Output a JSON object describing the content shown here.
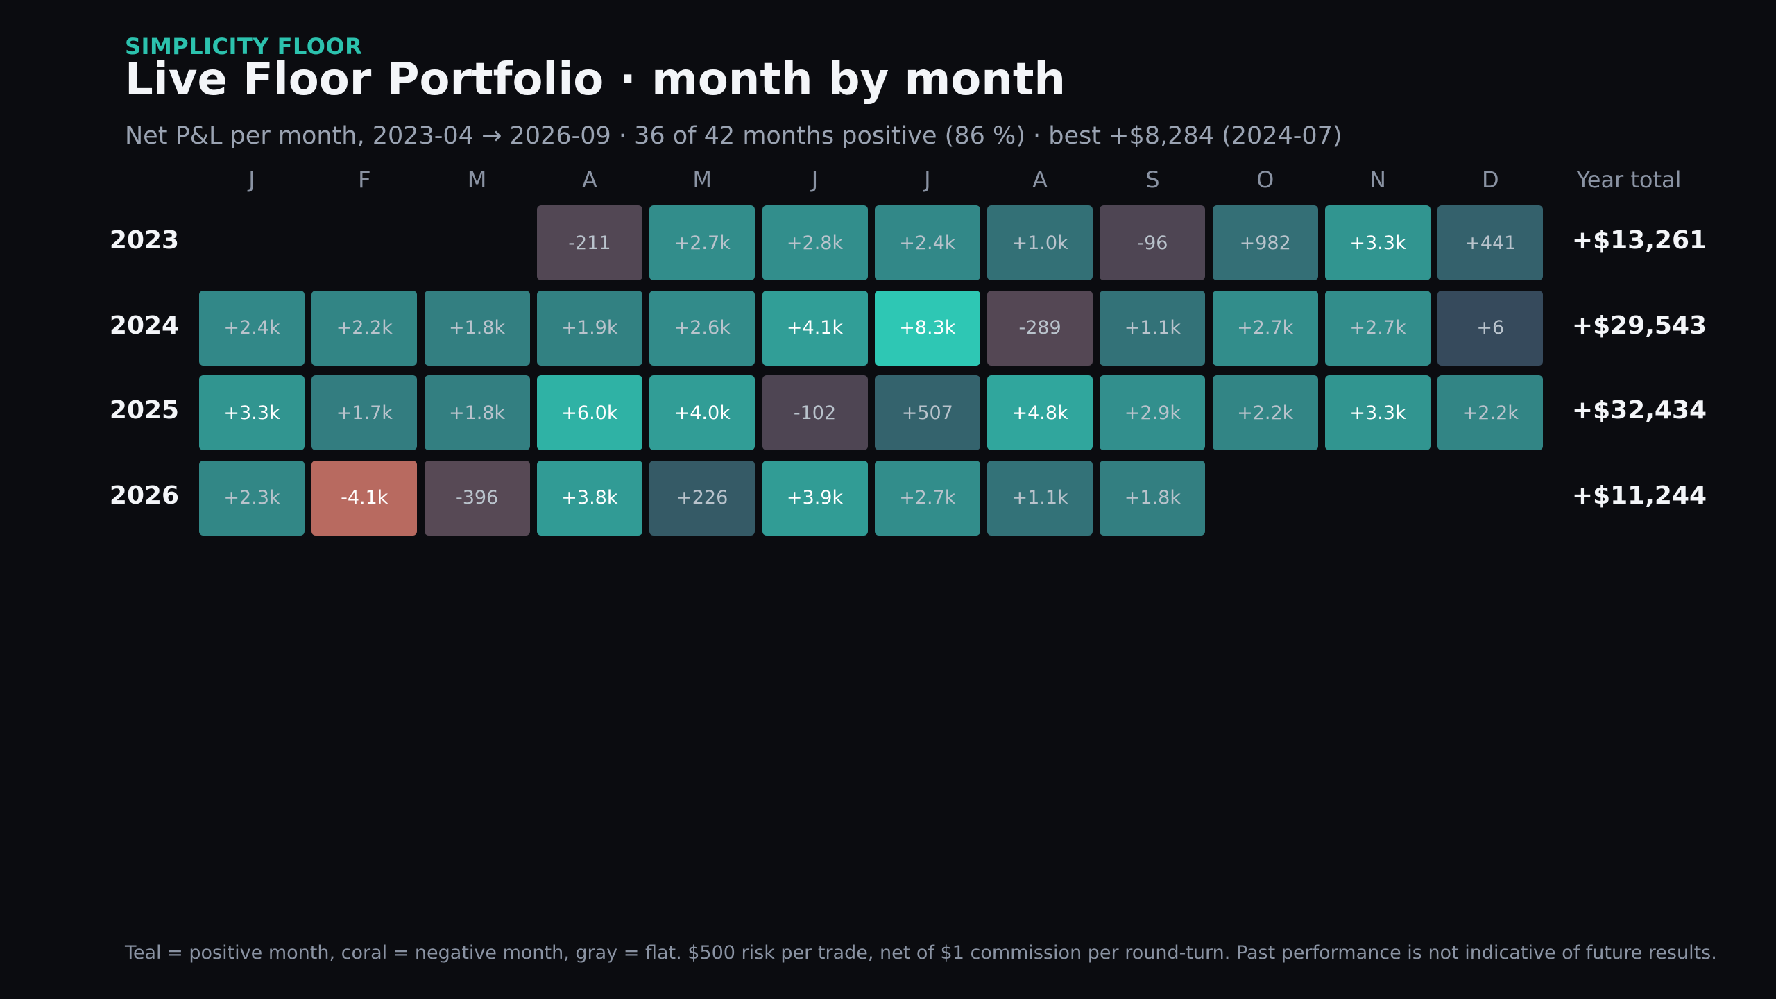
{
  "header": {
    "eyebrow": "SIMPLICITY FLOOR",
    "title": "Live Floor Portfolio · month by month",
    "subtitle": "Net P&L per month, 2023-04 → 2026-09 · 36 of 42 months positive (86 %) · best +$8,284 (2024-07)"
  },
  "footnote": "Teal = positive month, coral = negative month, gray = flat. $500 risk per trade, net of $1 commission per round-turn. Past performance is not indicative of future results.",
  "colors": {
    "background": "#0b0c10",
    "accent": "#2cc2ae",
    "positive_max": "#2ec7b4",
    "positive_min": "#36485a",
    "negative": "#b86a60",
    "flat": "#4a4453"
  },
  "chart_data": {
    "type": "heatmap",
    "columns": [
      "J",
      "F",
      "M",
      "A",
      "M",
      "J",
      "J",
      "A",
      "S",
      "O",
      "N",
      "D"
    ],
    "total_header": "Year total",
    "rows": [
      {
        "year": "2023",
        "total": "+$13,261",
        "values": [
          null,
          null,
          null,
          -211,
          2700,
          2800,
          2400,
          1000,
          -96,
          982,
          3300,
          441
        ],
        "labels": [
          "",
          "",
          "",
          "-211",
          "+2.7k",
          "+2.8k",
          "+2.4k",
          "+1.0k",
          "-96",
          "+982",
          "+3.3k",
          "+441"
        ]
      },
      {
        "year": "2024",
        "total": "+$29,543",
        "values": [
          2400,
          2200,
          1800,
          1900,
          2600,
          4100,
          8284,
          -289,
          1100,
          2700,
          2700,
          6
        ],
        "labels": [
          "+2.4k",
          "+2.2k",
          "+1.8k",
          "+1.9k",
          "+2.6k",
          "+4.1k",
          "+8.3k",
          "-289",
          "+1.1k",
          "+2.7k",
          "+2.7k",
          "+6"
        ]
      },
      {
        "year": "2025",
        "total": "+$32,434",
        "values": [
          3300,
          1700,
          1800,
          6000,
          4000,
          -102,
          507,
          4800,
          2900,
          2200,
          3300,
          2200
        ],
        "labels": [
          "+3.3k",
          "+1.7k",
          "+1.8k",
          "+6.0k",
          "+4.0k",
          "-102",
          "+507",
          "+4.8k",
          "+2.9k",
          "+2.2k",
          "+3.3k",
          "+2.2k"
        ]
      },
      {
        "year": "2026",
        "total": "+$11,244",
        "values": [
          2300,
          -4100,
          -396,
          3800,
          226,
          3900,
          2700,
          1100,
          1800,
          null,
          null,
          null
        ],
        "labels": [
          "+2.3k",
          "-4.1k",
          "-396",
          "+3.8k",
          "+226",
          "+3.9k",
          "+2.7k",
          "+1.1k",
          "+1.8k",
          "",
          "",
          ""
        ]
      }
    ]
  }
}
